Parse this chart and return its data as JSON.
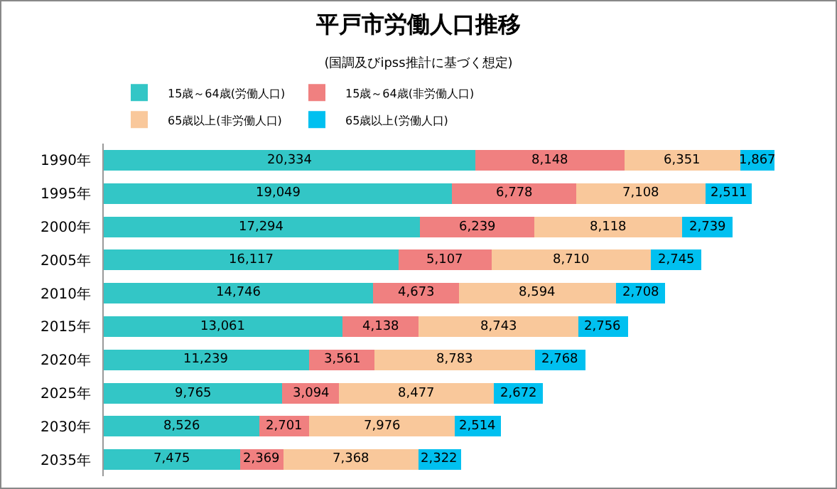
{
  "chart_data": {
    "type": "bar",
    "orientation": "horizontal",
    "stacked": true,
    "legend": "top",
    "grid": false,
    "title": "平戸市労働人口推移",
    "subtitle": "(国調及びipss推計に基づく想定)",
    "categories": [
      "1990年",
      "1995年",
      "2000年",
      "2005年",
      "2010年",
      "2015年",
      "2020年",
      "2025年",
      "2030年",
      "2035年"
    ],
    "series": [
      {
        "name": "15歳～64歳(労働人口)",
        "color": "#33c6c6",
        "values": [
          20334,
          19049,
          17294,
          16117,
          14746,
          13061,
          11239,
          9765,
          8526,
          7475
        ],
        "value_labels": [
          "20,334",
          "19,049",
          "17,294",
          "16,117",
          "14,746",
          "13,061",
          "11,239",
          "9,765",
          "8,526",
          "7,475"
        ]
      },
      {
        "name": "15歳～64歳(非労働人口)",
        "color": "#f08080",
        "values": [
          8148,
          6778,
          6239,
          5107,
          4673,
          4138,
          3561,
          3094,
          2701,
          2369
        ],
        "value_labels": [
          "8,148",
          "6,778",
          "6,239",
          "5,107",
          "4,673",
          "4,138",
          "3,561",
          "3,094",
          "2,701",
          "2,369"
        ]
      },
      {
        "name": "65歳以上(非労働人口)",
        "color": "#f9c89b",
        "values": [
          6351,
          7108,
          8118,
          8710,
          8594,
          8743,
          8783,
          8477,
          7976,
          7368
        ],
        "value_labels": [
          "6,351",
          "7,108",
          "8,118",
          "8,710",
          "8,594",
          "8,743",
          "8,783",
          "8,477",
          "7,976",
          "7,368"
        ]
      },
      {
        "name": "65歳以上(労働人口)",
        "color": "#00c0f0",
        "values": [
          1867,
          2511,
          2739,
          2745,
          2708,
          2756,
          2768,
          2672,
          2514,
          2322
        ],
        "value_labels": [
          "1,867",
          "2,511",
          "2,739",
          "2,745",
          "2,708",
          "2,756",
          "2,768",
          "2,672",
          "2,514",
          "2,322"
        ]
      }
    ]
  }
}
